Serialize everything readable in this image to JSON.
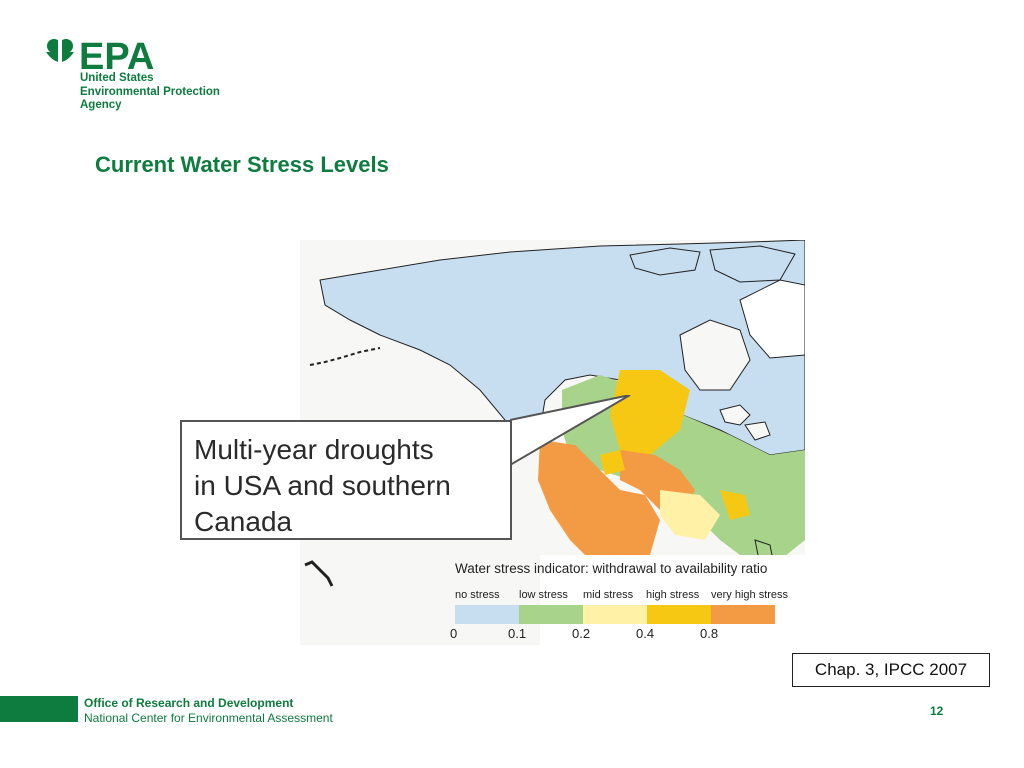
{
  "logo": {
    "wordmark": "EPA",
    "lines": [
      "United States",
      "Environmental Protection",
      "Agency"
    ],
    "color": "#0e7b3f"
  },
  "title": "Current Water Stress Levels",
  "callout": {
    "lines": [
      "Multi-year droughts",
      "in USA and southern",
      "Canada"
    ]
  },
  "legend": {
    "title": "Water stress indicator: withdrawal to availability ratio",
    "categories": [
      {
        "label": "no stress",
        "color": "#c6def0"
      },
      {
        "label": "low stress",
        "color": "#a8d38a"
      },
      {
        "label": "mid stress",
        "color": "#fff2a6"
      },
      {
        "label": "high stress",
        "color": "#f6c814"
      },
      {
        "label": "very high stress",
        "color": "#f39a45"
      }
    ],
    "ticks": [
      "0",
      "0.1",
      "0.2",
      "0.4",
      "0.8"
    ]
  },
  "citation": "Chap. 3, IPCC 2007",
  "footer": {
    "office": "Office of Research and Development",
    "center": "National Center for Environmental Assessment",
    "page_number": "12"
  }
}
